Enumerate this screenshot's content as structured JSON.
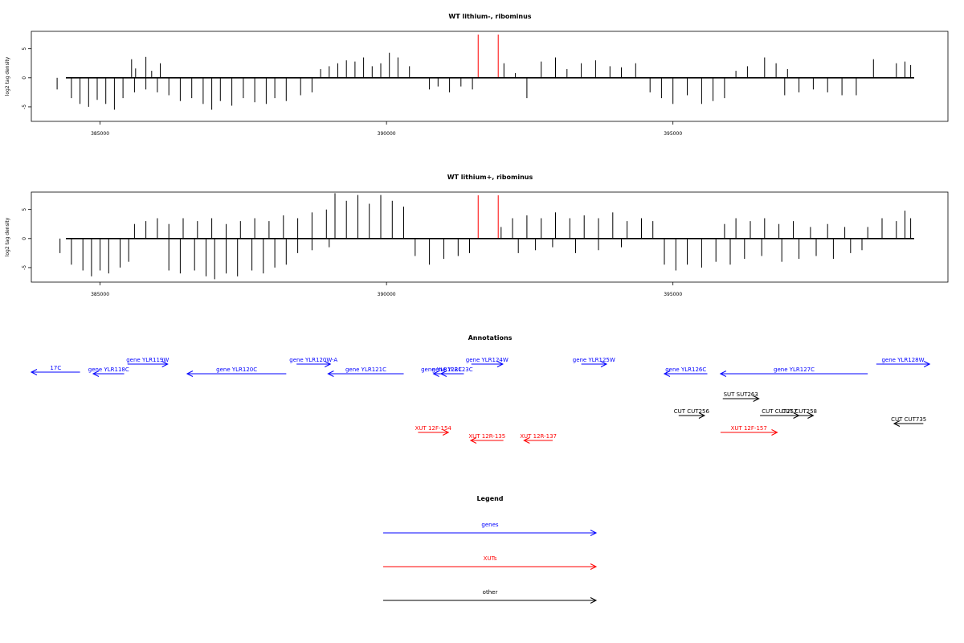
{
  "colors": {
    "gene": "#0000ff",
    "xut": "#ff0000",
    "other": "#000000",
    "marker": "#ff0000",
    "bars": "#000000"
  },
  "chart_data": [
    {
      "type": "bar",
      "title": "WT lithium-, ribominus",
      "ylabel": "log2 tag density",
      "xlim": [
        383800,
        399800
      ],
      "ylim": [
        -7.5,
        8
      ],
      "yticks": [
        -5,
        0,
        5
      ],
      "xticks": [
        385000,
        390000,
        395000
      ],
      "xtick_labels": [
        "385000",
        "390000",
        "395000"
      ],
      "markers": [
        391600,
        391950
      ],
      "series": [
        {
          "values": [
            [
              384250,
              -2.0
            ],
            [
              384500,
              -3.5
            ],
            [
              384650,
              -4.5
            ],
            [
              384800,
              -5.0
            ],
            [
              384950,
              -3.8
            ],
            [
              385100,
              -4.5
            ],
            [
              385250,
              -5.5
            ],
            [
              385400,
              -3.5
            ],
            [
              385600,
              -2.5
            ],
            [
              385800,
              -2.0
            ],
            [
              386000,
              -2.5
            ],
            [
              385550,
              3.2
            ],
            [
              385620,
              1.6
            ],
            [
              385800,
              3.6
            ],
            [
              385900,
              1.2
            ],
            [
              386050,
              2.5
            ],
            [
              386200,
              -3.0
            ],
            [
              386400,
              -4.0
            ],
            [
              386600,
              -3.5
            ],
            [
              386800,
              -4.5
            ],
            [
              386950,
              -5.5
            ],
            [
              387100,
              -4.0
            ],
            [
              387300,
              -4.8
            ],
            [
              387500,
              -3.5
            ],
            [
              387700,
              -4.2
            ],
            [
              387900,
              -4.5
            ],
            [
              388050,
              -3.5
            ],
            [
              388250,
              -4.0
            ],
            [
              388500,
              -3.0
            ],
            [
              388700,
              -2.5
            ],
            [
              388850,
              1.5
            ],
            [
              389000,
              2.0
            ],
            [
              389150,
              2.5
            ],
            [
              389300,
              3.0
            ],
            [
              389450,
              2.8
            ],
            [
              389600,
              3.5
            ],
            [
              389750,
              2.0
            ],
            [
              389900,
              2.5
            ],
            [
              390050,
              4.3
            ],
            [
              390200,
              3.5
            ],
            [
              390400,
              2.0
            ],
            [
              390750,
              -2.0
            ],
            [
              390900,
              -1.5
            ],
            [
              391100,
              -2.5
            ],
            [
              391300,
              -1.5
            ],
            [
              391500,
              -2.0
            ],
            [
              392050,
              2.5
            ],
            [
              392250,
              0.8
            ],
            [
              392450,
              -3.5
            ],
            [
              392700,
              2.8
            ],
            [
              392950,
              3.5
            ],
            [
              393150,
              1.5
            ],
            [
              393400,
              2.5
            ],
            [
              393650,
              3.0
            ],
            [
              393900,
              2.0
            ],
            [
              394100,
              1.8
            ],
            [
              394350,
              2.5
            ],
            [
              394600,
              -2.5
            ],
            [
              394800,
              -3.5
            ],
            [
              395000,
              -4.5
            ],
            [
              395250,
              -3.0
            ],
            [
              395500,
              -4.5
            ],
            [
              395700,
              -4.0
            ],
            [
              395900,
              -3.5
            ],
            [
              396100,
              1.2
            ],
            [
              396300,
              2.0
            ],
            [
              396600,
              3.5
            ],
            [
              396800,
              2.5
            ],
            [
              397000,
              1.5
            ],
            [
              396950,
              -3.0
            ],
            [
              397200,
              -2.5
            ],
            [
              397450,
              -2.0
            ],
            [
              397700,
              -2.5
            ],
            [
              397950,
              -3.0
            ],
            [
              398200,
              -3.0
            ],
            [
              398500,
              3.2
            ],
            [
              398900,
              2.5
            ],
            [
              399050,
              2.8
            ],
            [
              399150,
              2.2
            ]
          ]
        }
      ]
    },
    {
      "type": "bar",
      "title": "WT lithium+, ribominus",
      "ylabel": "log2 tag density",
      "xlim": [
        383800,
        399800
      ],
      "ylim": [
        -7.5,
        8
      ],
      "yticks": [
        -5,
        0,
        5
      ],
      "xticks": [
        385000,
        390000,
        395000
      ],
      "xtick_labels": [
        "385000",
        "390000",
        "395000"
      ],
      "markers": [
        391600,
        391950
      ],
      "series": [
        {
          "values": [
            [
              384300,
              -2.5
            ],
            [
              384500,
              -4.5
            ],
            [
              384700,
              -5.5
            ],
            [
              384850,
              -6.5
            ],
            [
              385000,
              -5.5
            ],
            [
              385150,
              -6.0
            ],
            [
              385350,
              -5.0
            ],
            [
              385500,
              -4.0
            ],
            [
              385600,
              2.5
            ],
            [
              385800,
              3.0
            ],
            [
              386000,
              3.5
            ],
            [
              386200,
              2.5
            ],
            [
              386450,
              3.5
            ],
            [
              386700,
              3.0
            ],
            [
              386950,
              3.5
            ],
            [
              387200,
              2.5
            ],
            [
              387450,
              3.0
            ],
            [
              387700,
              3.5
            ],
            [
              387950,
              3.0
            ],
            [
              388200,
              4.0
            ],
            [
              388450,
              3.5
            ],
            [
              388700,
              4.5
            ],
            [
              388950,
              5.0
            ],
            [
              389100,
              7.8
            ],
            [
              389300,
              6.5
            ],
            [
              389500,
              7.5
            ],
            [
              389700,
              6.0
            ],
            [
              389900,
              7.5
            ],
            [
              390100,
              6.5
            ],
            [
              390300,
              5.5
            ],
            [
              386200,
              -5.5
            ],
            [
              386400,
              -6.0
            ],
            [
              386650,
              -5.5
            ],
            [
              386850,
              -6.5
            ],
            [
              387000,
              -7.0
            ],
            [
              387200,
              -6.0
            ],
            [
              387400,
              -6.5
            ],
            [
              387650,
              -5.5
            ],
            [
              387850,
              -6.0
            ],
            [
              388050,
              -5.0
            ],
            [
              388250,
              -4.5
            ],
            [
              388450,
              -2.5
            ],
            [
              388700,
              -2.0
            ],
            [
              389000,
              -1.5
            ],
            [
              390500,
              -3.0
            ],
            [
              390750,
              -4.5
            ],
            [
              391000,
              -3.5
            ],
            [
              391250,
              -3.0
            ],
            [
              391450,
              -2.5
            ],
            [
              392000,
              2.0
            ],
            [
              392200,
              3.5
            ],
            [
              392450,
              4.0
            ],
            [
              392700,
              3.5
            ],
            [
              392950,
              4.5
            ],
            [
              393200,
              3.5
            ],
            [
              393450,
              4.0
            ],
            [
              393700,
              3.5
            ],
            [
              393950,
              4.5
            ],
            [
              394200,
              3.0
            ],
            [
              394450,
              3.5
            ],
            [
              394650,
              3.0
            ],
            [
              392300,
              -2.5
            ],
            [
              392600,
              -2.0
            ],
            [
              392900,
              -1.5
            ],
            [
              393300,
              -2.5
            ],
            [
              393700,
              -2.0
            ],
            [
              394100,
              -1.5
            ],
            [
              394850,
              -4.5
            ],
            [
              395050,
              -5.5
            ],
            [
              395250,
              -4.5
            ],
            [
              395500,
              -5.0
            ],
            [
              395750,
              -4.0
            ],
            [
              396000,
              -4.5
            ],
            [
              396250,
              -3.5
            ],
            [
              396550,
              -3.0
            ],
            [
              396900,
              -4.0
            ],
            [
              397200,
              -3.5
            ],
            [
              397500,
              -3.0
            ],
            [
              397800,
              -3.5
            ],
            [
              398100,
              -2.5
            ],
            [
              398300,
              -2.0
            ],
            [
              395900,
              2.5
            ],
            [
              396100,
              3.5
            ],
            [
              396350,
              3.0
            ],
            [
              396600,
              3.5
            ],
            [
              396850,
              2.5
            ],
            [
              397100,
              3.0
            ],
            [
              397400,
              2.0
            ],
            [
              397700,
              2.5
            ],
            [
              398000,
              2.0
            ],
            [
              398400,
              2.0
            ],
            [
              398650,
              3.5
            ],
            [
              398900,
              3.0
            ],
            [
              399050,
              4.8
            ],
            [
              399150,
              3.5
            ]
          ]
        }
      ]
    }
  ],
  "annotations": {
    "title": "Annotations",
    "items": [
      {
        "label": "17C",
        "type": "gene",
        "x0": 383800,
        "x1": 384650,
        "dir": "left"
      },
      {
        "label": "gene YLR118C",
        "type": "gene",
        "x0": 384880,
        "x1": 385420,
        "dir": "left"
      },
      {
        "label": "gene YLR119W",
        "type": "gene",
        "x0": 385480,
        "x1": 386180,
        "dir": "right"
      },
      {
        "label": "gene YLR120C",
        "type": "gene",
        "x0": 386520,
        "x1": 388250,
        "dir": "left"
      },
      {
        "label": "gene YLR120W-A",
        "type": "gene",
        "x0": 388430,
        "x1": 389020,
        "dir": "right"
      },
      {
        "label": "gene YLR121C",
        "type": "gene",
        "x0": 388980,
        "x1": 390300,
        "dir": "left"
      },
      {
        "label": "gene YLR122C",
        "type": "gene",
        "x0": 390820,
        "x1": 391100,
        "dir": "left"
      },
      {
        "label": "gene YLR123C",
        "type": "gene",
        "x0": 390950,
        "x1": 391350,
        "dir": "left"
      },
      {
        "label": "gene YLR124W",
        "type": "gene",
        "x0": 391480,
        "x1": 392030,
        "dir": "right"
      },
      {
        "label": "gene YLR125W",
        "type": "gene",
        "x0": 393400,
        "x1": 393840,
        "dir": "right"
      },
      {
        "label": "gene YLR126C",
        "type": "gene",
        "x0": 394850,
        "x1": 395600,
        "dir": "left"
      },
      {
        "label": "gene YLR127C",
        "type": "gene",
        "x0": 395830,
        "x1": 398400,
        "dir": "left"
      },
      {
        "label": "gene YLR128W",
        "type": "gene",
        "x0": 398550,
        "x1": 399480,
        "dir": "right"
      },
      {
        "label": "SUT SUT263",
        "type": "other",
        "x0": 395870,
        "x1": 396500,
        "dir": "right"
      },
      {
        "label": "CUT CUT256",
        "type": "other",
        "x0": 395100,
        "x1": 395550,
        "dir": "right"
      },
      {
        "label": "CUT CUT257",
        "type": "other",
        "x0": 396520,
        "x1": 397200,
        "dir": "right"
      },
      {
        "label": "CUT CUT258",
        "type": "other",
        "x0": 396960,
        "x1": 397450,
        "dir": "right"
      },
      {
        "label": "CUT CUT735",
        "type": "other",
        "x0": 398860,
        "x1": 399370,
        "dir": "left"
      },
      {
        "label": "XUT 12F-154",
        "type": "xut",
        "x0": 390550,
        "x1": 391080,
        "dir": "right"
      },
      {
        "label": "XUT 12R-135",
        "type": "xut",
        "x0": 391470,
        "x1": 392040,
        "dir": "left"
      },
      {
        "label": "XUT 12R-137",
        "type": "xut",
        "x0": 392400,
        "x1": 392900,
        "dir": "left"
      },
      {
        "label": "XUT 12F-157",
        "type": "xut",
        "x0": 395830,
        "x1": 396820,
        "dir": "right"
      }
    ]
  },
  "legend": {
    "title": "Legend",
    "items": [
      {
        "label": "genes",
        "type": "gene"
      },
      {
        "label": "XUTs",
        "type": "xut"
      },
      {
        "label": "other",
        "type": "other"
      }
    ]
  }
}
